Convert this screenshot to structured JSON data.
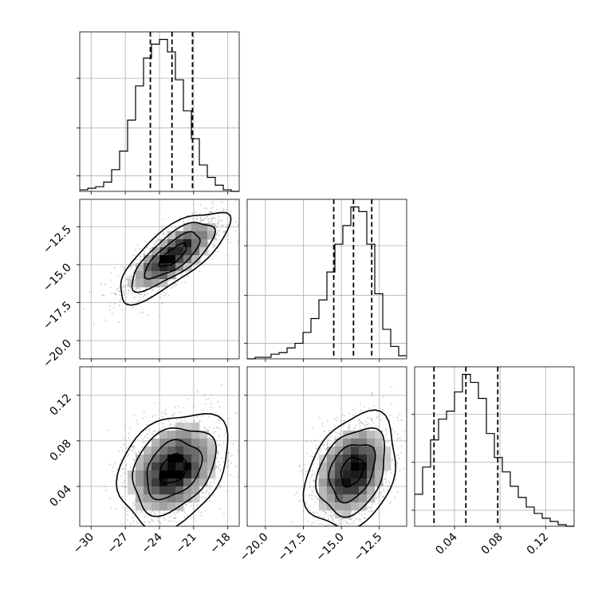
{
  "chart_data": {
    "type": "corner",
    "parameters": [
      {
        "name": "",
        "range": [
          -31,
          -17
        ]
      },
      {
        "name": "",
        "range": [
          -21.2,
          -10.7
        ]
      },
      {
        "name": "",
        "range": [
          0.005,
          0.145
        ]
      }
    ],
    "tick_labels": {
      "p0": [
        "−30",
        "−27",
        "−24",
        "−21",
        "−18"
      ],
      "p1": [
        "−20.0",
        "−17.5",
        "−15.0",
        "−12.5"
      ],
      "p2": [
        "0.04",
        "0.08",
        "0.12"
      ]
    },
    "histograms": [
      {
        "param": 0,
        "bin_edges": [
          -31,
          -30.3,
          -29.6,
          -28.9,
          -28.2,
          -27.5,
          -26.8,
          -26.1,
          -25.4,
          -24.7,
          -24,
          -23.3,
          -22.6,
          -21.9,
          -21.2,
          -20.5,
          -19.8,
          -19.1,
          -18.4,
          -17.7,
          -17
        ],
        "counts": [
          1,
          2,
          3,
          6,
          14,
          26,
          46,
          68,
          86,
          95,
          98,
          90,
          72,
          52,
          34,
          17,
          9,
          4,
          1,
          0
        ],
        "quantiles": [
          -24.8,
          -22.9,
          -21.1
        ]
      },
      {
        "param": 1,
        "bin_edges": [
          -21.2,
          -20.675,
          -20.15,
          -19.625,
          -19.1,
          -18.575,
          -18.05,
          -17.525,
          -17,
          -16.475,
          -15.95,
          -15.425,
          -14.9,
          -14.375,
          -13.85,
          -13.325,
          -12.8,
          -12.275,
          -11.75,
          -11.225,
          -10.7
        ],
        "counts": [
          0,
          1,
          1,
          3,
          4,
          7,
          10,
          17,
          26,
          38,
          56,
          74,
          86,
          98,
          95,
          74,
          42,
          19,
          8,
          2
        ],
        "quantiles": [
          -15.5,
          -14.2,
          -13
        ]
      },
      {
        "param": 2,
        "bin_edges": [
          0.005,
          0.012,
          0.019,
          0.026,
          0.033,
          0.04,
          0.047,
          0.054,
          0.061,
          0.068,
          0.075,
          0.082,
          0.089,
          0.096,
          0.103,
          0.11,
          0.117,
          0.124,
          0.131,
          0.138,
          0.145
        ],
        "counts": [
          20,
          37,
          54,
          67,
          72,
          84,
          95,
          90,
          80,
          58,
          43,
          34,
          25,
          18,
          12,
          8,
          5,
          3,
          1,
          0
        ],
        "quantiles": [
          0.022,
          0.05,
          0.078
        ]
      }
    ],
    "density_2d": [
      {
        "x_param": 0,
        "y_param": 1,
        "center": [
          -22.8,
          -14.4
        ],
        "sd": [
          2.1,
          1.3
        ],
        "corr": 0.75
      },
      {
        "x_param": 0,
        "y_param": 2,
        "center": [
          -22.8,
          0.055
        ],
        "sd": [
          2.1,
          0.022
        ],
        "corr": 0.3
      },
      {
        "x_param": 1,
        "y_param": 2,
        "center": [
          -14.3,
          0.053
        ],
        "sd": [
          1.3,
          0.022
        ],
        "corr": 0.3
      }
    ],
    "contour_levels_sigma": [
      0.5,
      1.0,
      1.5,
      2.0
    ],
    "grid": true,
    "legend": "none"
  }
}
